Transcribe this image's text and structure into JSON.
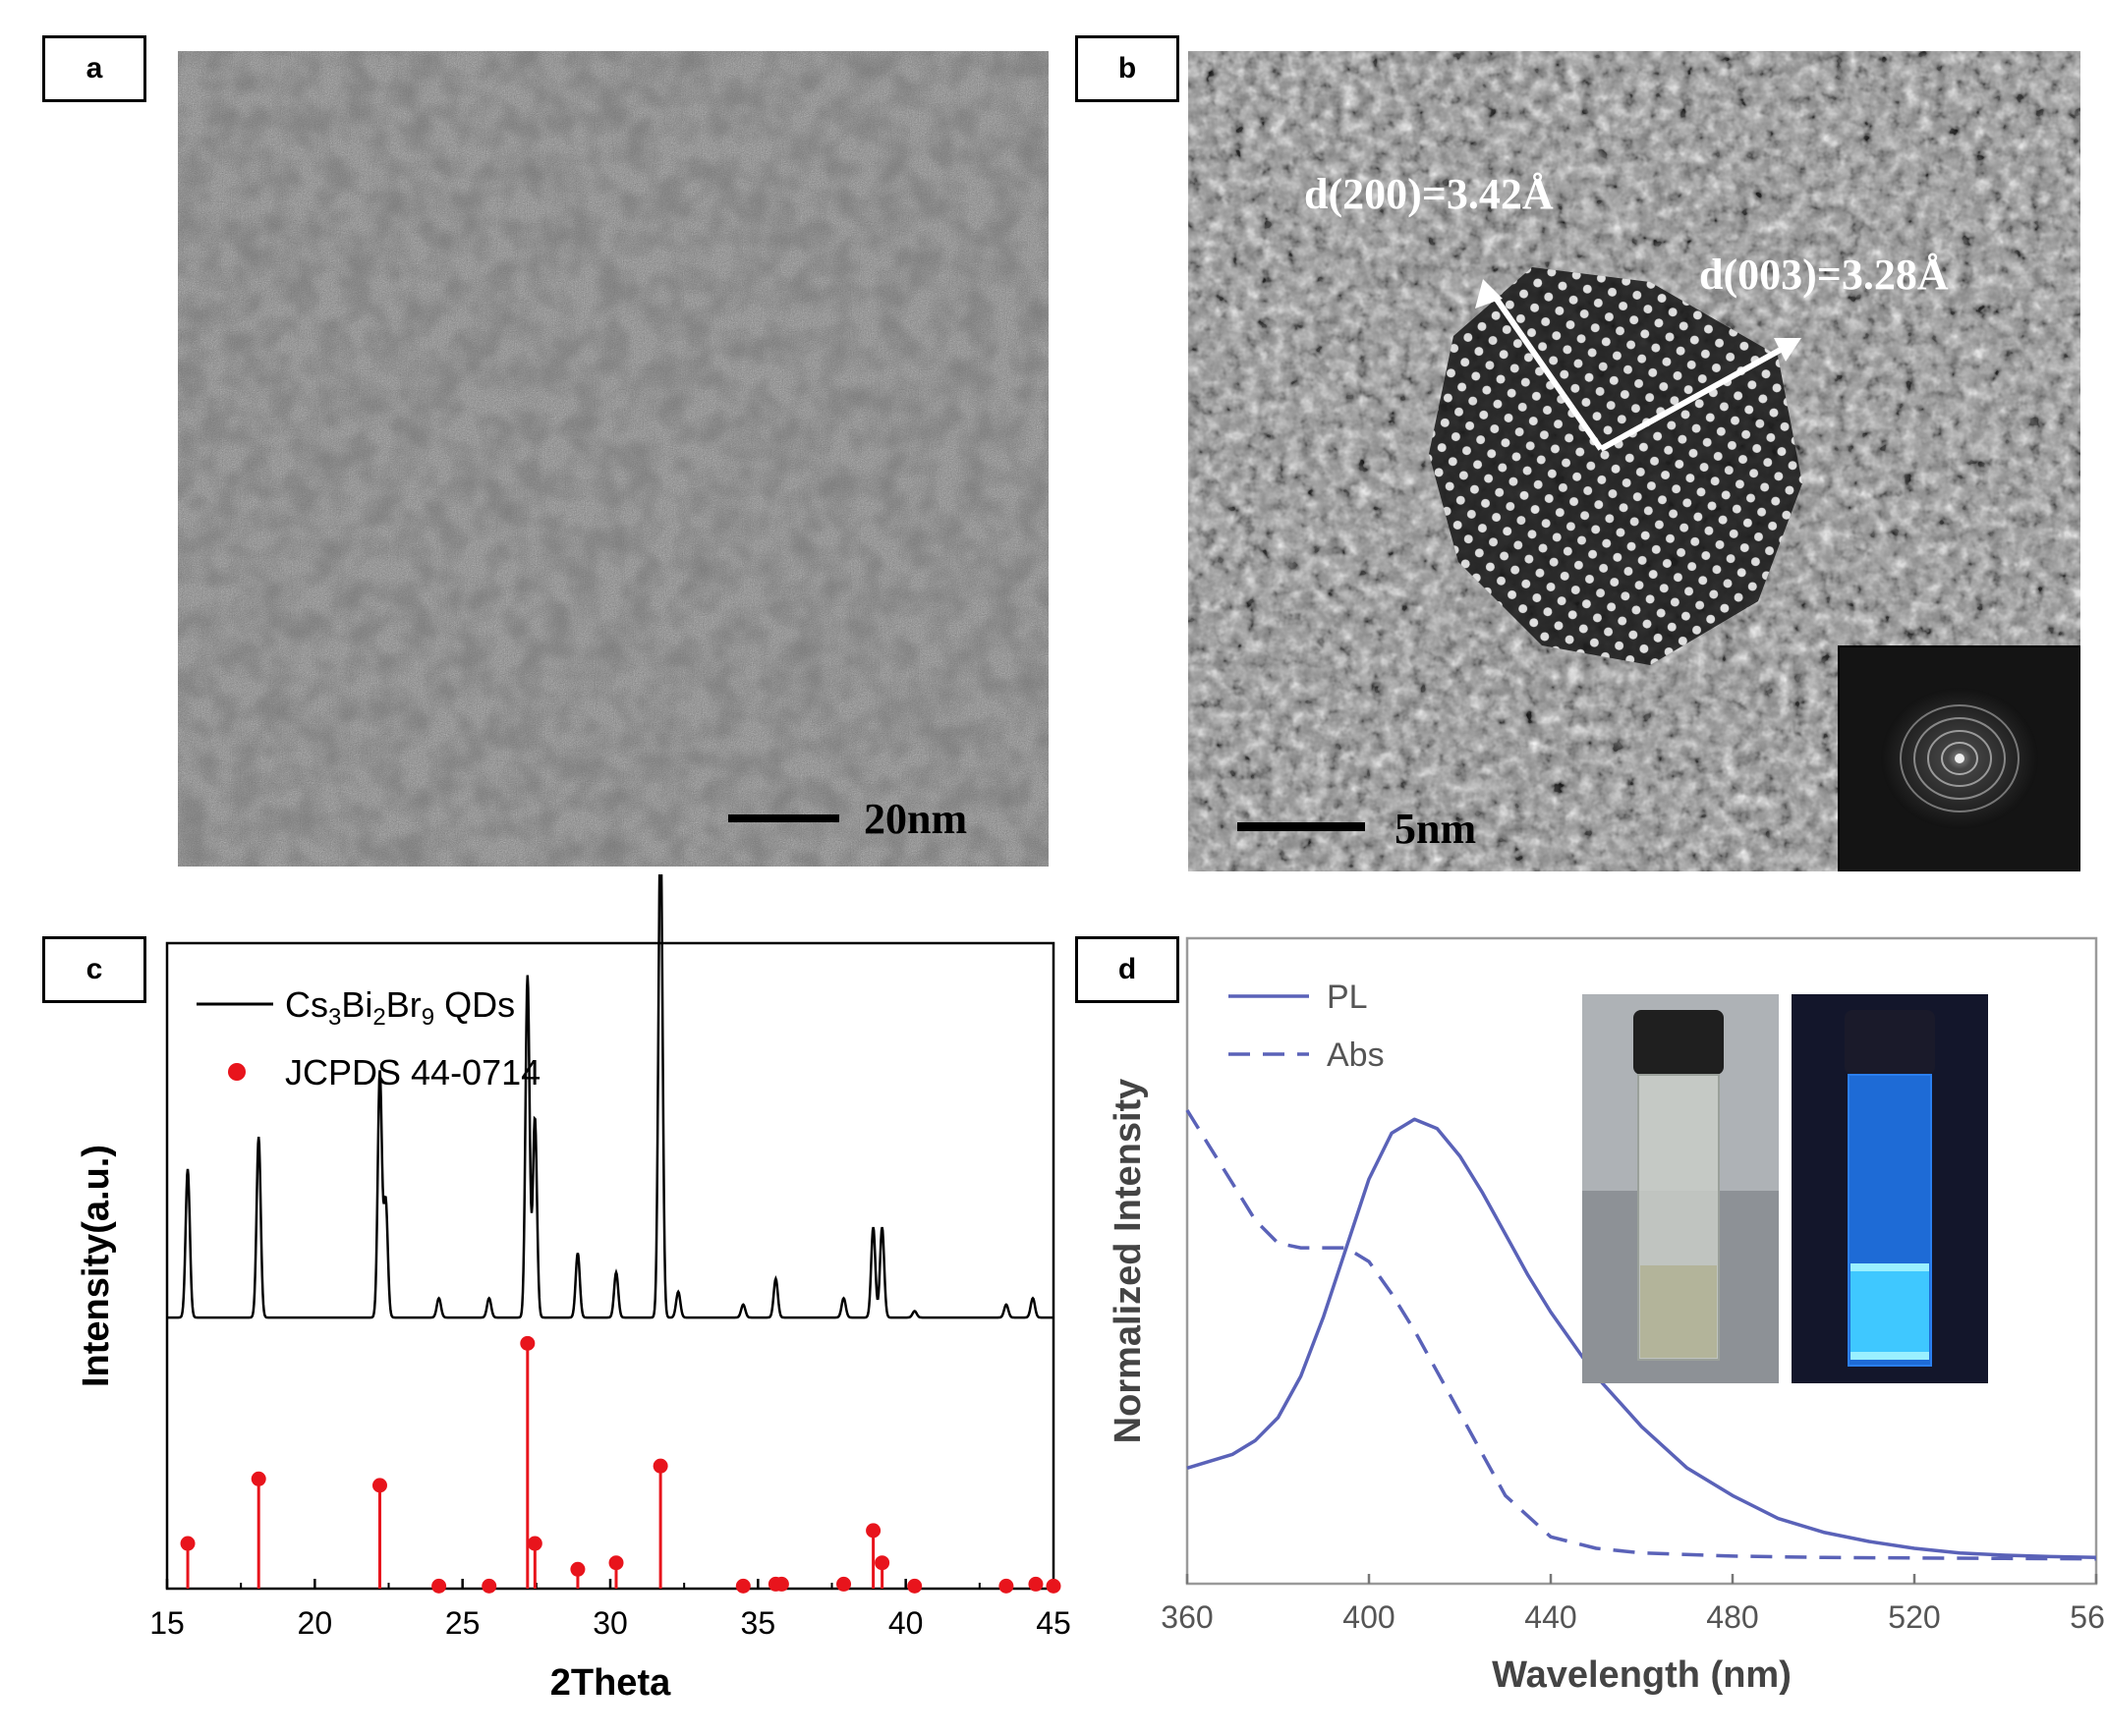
{
  "panels": {
    "a": {
      "label": "a",
      "scale_bar": "20nm"
    },
    "b": {
      "label": "b",
      "scale_bar": "5nm",
      "annotations": [
        "d(200)=3.42Å",
        "d(003)=3.28Å"
      ]
    },
    "c": {
      "label": "c"
    },
    "d": {
      "label": "d"
    }
  },
  "chart_data": [
    {
      "panel": "c",
      "type": "line",
      "xlabel": "2Theta",
      "ylabel": "Intensity(a.u.)",
      "xlim": [
        15,
        45
      ],
      "xticks": [
        15,
        20,
        25,
        30,
        35,
        40,
        45
      ],
      "legend_position": "top-left",
      "colors": {
        "qds": "#000000",
        "jcpds": "#e8141c"
      },
      "series": [
        {
          "name_parts": [
            "Cs",
            "3",
            "Bi",
            "2",
            "Br",
            "9",
            " QDs"
          ],
          "kind": "xrd-pattern",
          "baseline": 0.42,
          "peaks": [
            {
              "x": 15.7,
              "h": 0.23
            },
            {
              "x": 18.1,
              "h": 0.28
            },
            {
              "x": 22.2,
              "h": 0.38
            },
            {
              "x": 22.4,
              "h": 0.18
            },
            {
              "x": 24.2,
              "h": 0.03
            },
            {
              "x": 25.9,
              "h": 0.03
            },
            {
              "x": 27.2,
              "h": 0.53
            },
            {
              "x": 27.45,
              "h": 0.31
            },
            {
              "x": 28.9,
              "h": 0.1
            },
            {
              "x": 30.2,
              "h": 0.07
            },
            {
              "x": 31.7,
              "h": 0.77
            },
            {
              "x": 32.3,
              "h": 0.04
            },
            {
              "x": 34.5,
              "h": 0.02
            },
            {
              "x": 35.6,
              "h": 0.06
            },
            {
              "x": 37.9,
              "h": 0.03
            },
            {
              "x": 38.9,
              "h": 0.14
            },
            {
              "x": 39.2,
              "h": 0.14
            },
            {
              "x": 40.3,
              "h": 0.01
            },
            {
              "x": 43.4,
              "h": 0.02
            },
            {
              "x": 44.3,
              "h": 0.03
            }
          ]
        },
        {
          "name": "JCPDS 44-0714",
          "kind": "reference-sticks",
          "peaks": [
            {
              "x": 15.7,
              "h": 0.07
            },
            {
              "x": 18.1,
              "h": 0.17
            },
            {
              "x": 22.2,
              "h": 0.16
            },
            {
              "x": 24.2,
              "h": 0.004
            },
            {
              "x": 25.9,
              "h": 0.004
            },
            {
              "x": 27.2,
              "h": 0.38
            },
            {
              "x": 27.45,
              "h": 0.07
            },
            {
              "x": 28.9,
              "h": 0.03
            },
            {
              "x": 30.2,
              "h": 0.04
            },
            {
              "x": 31.7,
              "h": 0.19
            },
            {
              "x": 34.5,
              "h": 0.004
            },
            {
              "x": 35.6,
              "h": 0.007
            },
            {
              "x": 35.8,
              "h": 0.007
            },
            {
              "x": 37.9,
              "h": 0.007
            },
            {
              "x": 38.9,
              "h": 0.09
            },
            {
              "x": 39.2,
              "h": 0.04
            },
            {
              "x": 40.3,
              "h": 0.004
            },
            {
              "x": 43.4,
              "h": 0.004
            },
            {
              "x": 44.4,
              "h": 0.007
            },
            {
              "x": 45.0,
              "h": 0.004
            }
          ]
        }
      ]
    },
    {
      "panel": "d",
      "type": "line",
      "xlabel": "Wavelength (nm)",
      "ylabel": "Normalized Intensity",
      "xlim": [
        360,
        560
      ],
      "xticks": [
        360,
        400,
        440,
        480,
        520,
        560
      ],
      "legend_position": "top-left",
      "colors": {
        "line": "#5a62b8"
      },
      "series": [
        {
          "name": "PL",
          "style": "solid",
          "x": [
            360,
            365,
            370,
            375,
            380,
            385,
            390,
            395,
            400,
            405,
            410,
            415,
            420,
            425,
            430,
            435,
            440,
            450,
            460,
            470,
            480,
            490,
            500,
            510,
            520,
            530,
            540,
            550,
            560
          ],
          "y": [
            0.22,
            0.235,
            0.25,
            0.28,
            0.33,
            0.42,
            0.55,
            0.7,
            0.85,
            0.95,
            0.98,
            0.96,
            0.9,
            0.82,
            0.73,
            0.64,
            0.56,
            0.42,
            0.31,
            0.22,
            0.16,
            0.11,
            0.08,
            0.06,
            0.045,
            0.035,
            0.03,
            0.027,
            0.025
          ]
        },
        {
          "name": "Abs",
          "style": "dashed",
          "x": [
            360,
            365,
            370,
            375,
            380,
            385,
            390,
            395,
            400,
            405,
            410,
            415,
            420,
            425,
            430,
            440,
            450,
            460,
            480,
            500,
            520,
            540,
            560
          ],
          "y": [
            1.0,
            0.92,
            0.84,
            0.76,
            0.71,
            0.7,
            0.7,
            0.7,
            0.67,
            0.6,
            0.52,
            0.43,
            0.34,
            0.25,
            0.16,
            0.07,
            0.045,
            0.035,
            0.028,
            0.025,
            0.024,
            0.023,
            0.022
          ]
        }
      ],
      "inset": "photos of vial under ambient light and under UV light"
    }
  ]
}
